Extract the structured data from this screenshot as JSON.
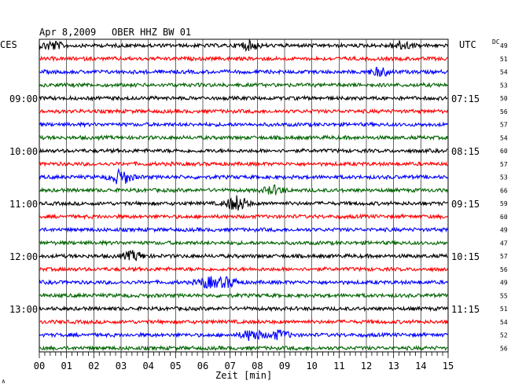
{
  "header": {
    "date": "Apr 8,2009",
    "station": "OBER HHZ BW 01",
    "left_zone": "CES",
    "right_zone": "UTC",
    "dc_label": "DC"
  },
  "footer": {
    "x_title": "Zeit [min]",
    "corner_mark": "∧"
  },
  "chart_data": {
    "type": "line",
    "title": "Apr 8,2009   OBER HHZ BW 01",
    "xlabel": "Zeit [min]",
    "ylabel": "",
    "xlim": [
      0,
      15
    ],
    "x_ticks": [
      "00",
      "01",
      "02",
      "03",
      "04",
      "05",
      "06",
      "07",
      "08",
      "09",
      "10",
      "11",
      "12",
      "13",
      "14",
      "15"
    ],
    "grid": true,
    "trace_colors": [
      "#000000",
      "#ff0000",
      "#0000ff",
      "#006400"
    ],
    "left_time_labels": [
      {
        "trace": 4,
        "label": "09:00"
      },
      {
        "trace": 8,
        "label": "10:00"
      },
      {
        "trace": 12,
        "label": "11:00"
      },
      {
        "trace": 16,
        "label": "12:00"
      },
      {
        "trace": 20,
        "label": "13:00"
      }
    ],
    "right_time_labels": [
      {
        "trace": 4,
        "label": "07:15"
      },
      {
        "trace": 8,
        "label": "08:15"
      },
      {
        "trace": 12,
        "label": "09:15"
      },
      {
        "trace": 16,
        "label": "10:15"
      },
      {
        "trace": 20,
        "label": "11:15"
      }
    ],
    "dc_values": [
      "49",
      "51",
      "54",
      "53",
      "50",
      "56",
      "57",
      "54",
      "60",
      "57",
      "53",
      "66",
      "59",
      "60",
      "49",
      "47",
      "57",
      "56",
      "49",
      "55",
      "51",
      "54",
      "52",
      "56"
    ],
    "events": [
      {
        "trace": 0,
        "minute": 0.45,
        "strength": 1.6
      },
      {
        "trace": 0,
        "minute": 7.7,
        "strength": 1.5
      },
      {
        "trace": 0,
        "minute": 13.3,
        "strength": 1.5
      },
      {
        "trace": 2,
        "minute": 12.5,
        "strength": 1.4
      },
      {
        "trace": 10,
        "minute": 3.0,
        "strength": 2.6
      },
      {
        "trace": 11,
        "minute": 8.6,
        "strength": 1.5
      },
      {
        "trace": 12,
        "minute": 7.25,
        "strength": 2.8
      },
      {
        "trace": 16,
        "minute": 3.45,
        "strength": 1.6
      },
      {
        "trace": 18,
        "minute": 6.2,
        "strength": 1.9
      },
      {
        "trace": 18,
        "minute": 6.9,
        "strength": 1.7
      },
      {
        "trace": 22,
        "minute": 7.8,
        "strength": 2.0
      },
      {
        "trace": 22,
        "minute": 8.8,
        "strength": 1.6
      }
    ]
  }
}
